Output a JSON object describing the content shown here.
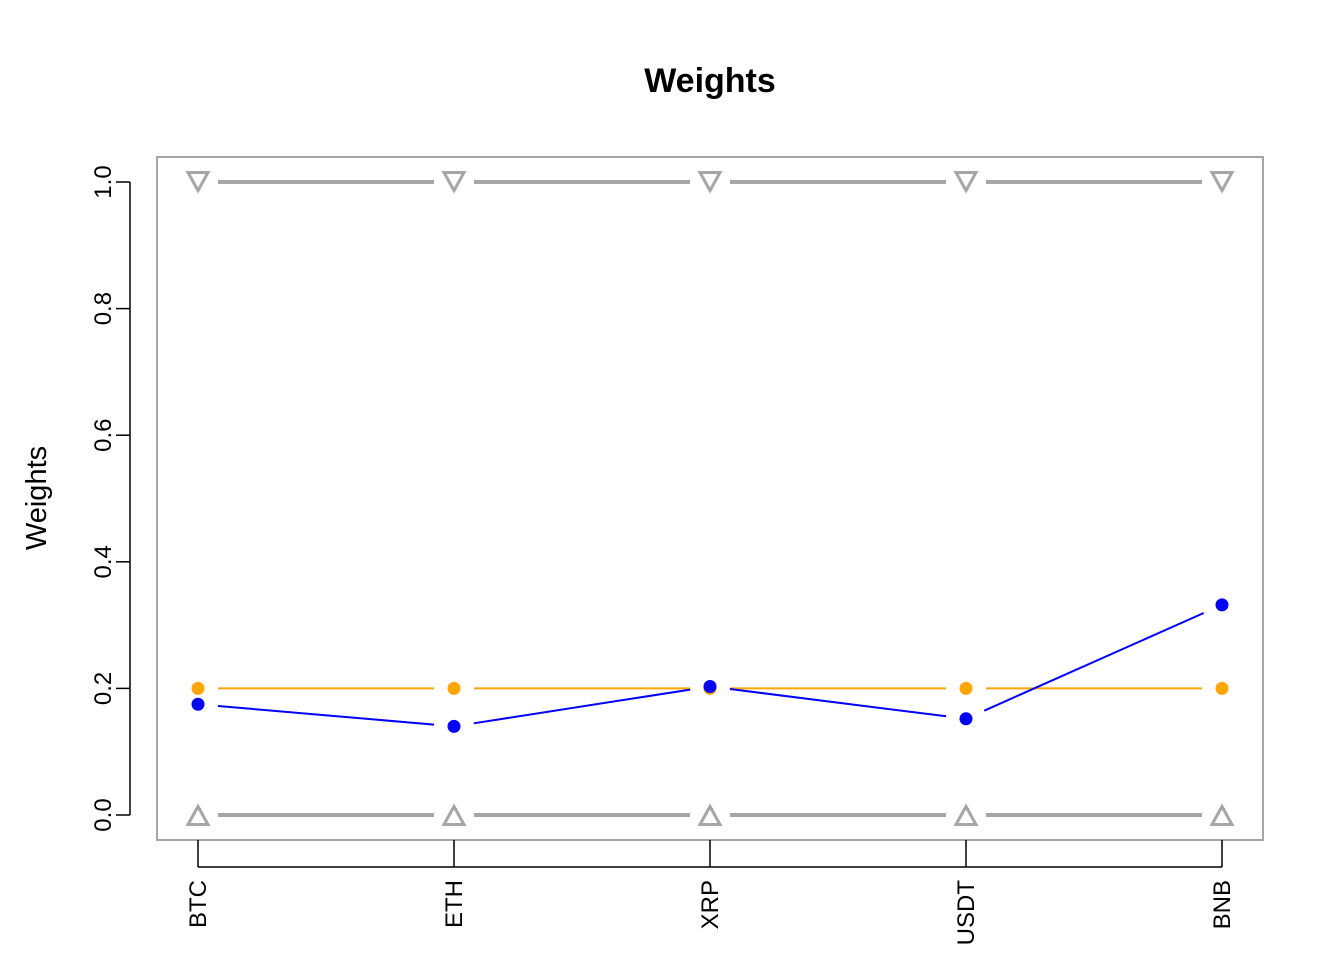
{
  "chart_data": {
    "type": "line",
    "title": "Weights",
    "xlabel": "",
    "ylabel": "Weights",
    "categories": [
      "BTC",
      "ETH",
      "XRP",
      "USDT",
      "BNB"
    ],
    "ylim": [
      0,
      1
    ],
    "yticks": [
      "0.0",
      "0.2",
      "0.4",
      "0.6",
      "0.8",
      "1.0"
    ],
    "grid": false,
    "series": [
      {
        "values": [
          0.2,
          0.2,
          0.2,
          0.2,
          0.2
        ],
        "color": "#FFA500",
        "marker": "circle"
      },
      {
        "values": [
          0.175,
          0.14,
          0.203,
          0.152,
          0.332
        ],
        "color": "#0000FF",
        "marker": "circle"
      },
      {
        "values": [
          1.0,
          1.0,
          1.0,
          1.0,
          1.0
        ],
        "color": "#A6A6A6",
        "marker": "triangle-down"
      },
      {
        "values": [
          0.0,
          0.0,
          0.0,
          0.0,
          0.0
        ],
        "color": "#A6A6A6",
        "marker": "triangle-up"
      }
    ]
  }
}
